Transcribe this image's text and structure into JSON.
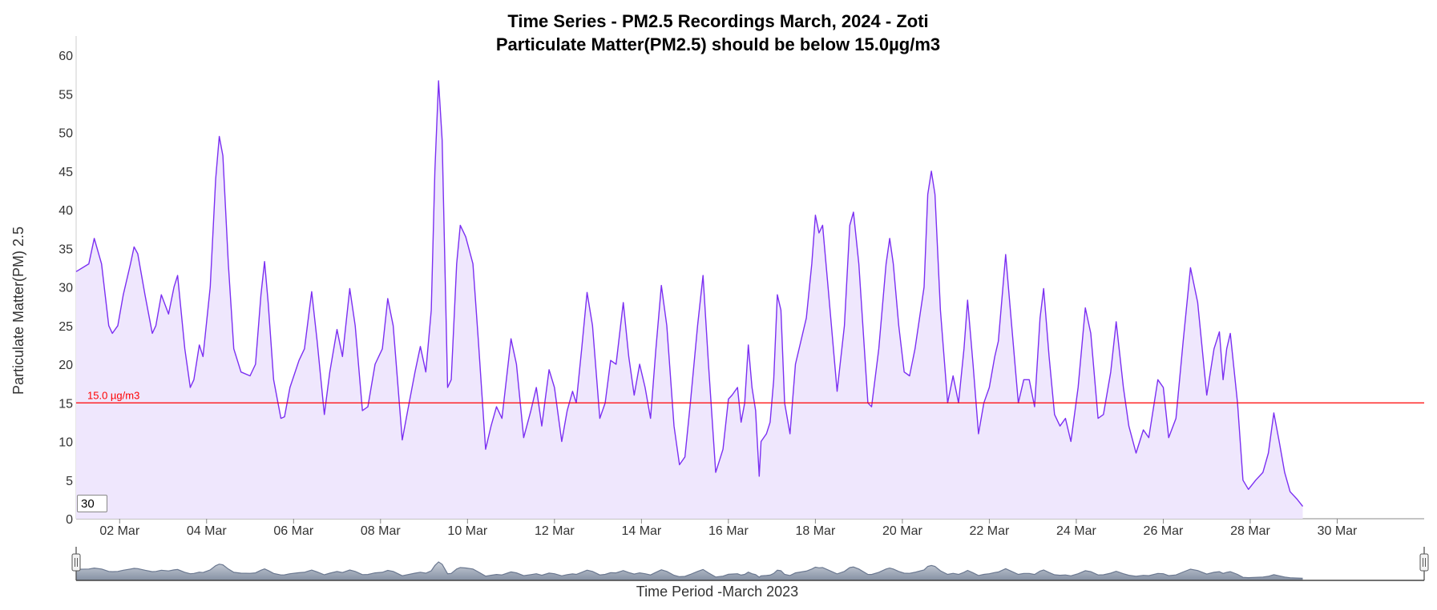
{
  "chart_data": {
    "type": "area",
    "title": "Time Series - PM2.5 Recordings March, 2024 - Zoti",
    "subtitle": "Particulate Matter(PM2.5) should be below 15.0µg/m3",
    "xlabel": "Time Period -March 2023",
    "ylabel": "Particulate Matter(PM) 2.5",
    "ylim": [
      0,
      62.5
    ],
    "xlim": [
      "2023-03-01 00:00",
      "2023-04-01 00:00"
    ],
    "y_ticks": [
      0,
      5,
      10,
      15,
      20,
      25,
      30,
      35,
      40,
      45,
      50,
      55,
      60
    ],
    "x_ticks": [
      {
        "date": "2023-03-02",
        "label": "02 Mar"
      },
      {
        "date": "2023-03-04",
        "label": "04 Mar"
      },
      {
        "date": "2023-03-06",
        "label": "06 Mar"
      },
      {
        "date": "2023-03-08",
        "label": "08 Mar"
      },
      {
        "date": "2023-03-10",
        "label": "10 Mar"
      },
      {
        "date": "2023-03-12",
        "label": "12 Mar"
      },
      {
        "date": "2023-03-14",
        "label": "14 Mar"
      },
      {
        "date": "2023-03-16",
        "label": "16 Mar"
      },
      {
        "date": "2023-03-18",
        "label": "18 Mar"
      },
      {
        "date": "2023-03-20",
        "label": "20 Mar"
      },
      {
        "date": "2023-03-22",
        "label": "22 Mar"
      },
      {
        "date": "2023-03-24",
        "label": "24 Mar"
      },
      {
        "date": "2023-03-26",
        "label": "26 Mar"
      },
      {
        "date": "2023-03-28",
        "label": "28 Mar"
      },
      {
        "date": "2023-03-30",
        "label": "30 Mar"
      }
    ],
    "threshold": {
      "value": 15.0,
      "label": "15.0 µg/m3",
      "color": "#ff0000"
    },
    "series": [
      {
        "color": "#7b2ff2",
        "fill": "#efe7fd",
        "points": [
          [
            "2023-03-01 00:00",
            32
          ],
          [
            "2023-03-01 07:00",
            33
          ],
          [
            "2023-03-01 10:00",
            36.3
          ],
          [
            "2023-03-01 14:00",
            33
          ],
          [
            "2023-03-01 18:00",
            25
          ],
          [
            "2023-03-01 20:00",
            24
          ],
          [
            "2023-03-01 23:00",
            25
          ],
          [
            "2023-03-02 02:00",
            29
          ],
          [
            "2023-03-02 06:00",
            33
          ],
          [
            "2023-03-02 08:00",
            35.2
          ],
          [
            "2023-03-02 10:00",
            34.3
          ],
          [
            "2023-03-02 14:00",
            29
          ],
          [
            "2023-03-02 18:00",
            24
          ],
          [
            "2023-03-02 20:00",
            25
          ],
          [
            "2023-03-02 23:00",
            29
          ],
          [
            "2023-03-03 03:00",
            26.5
          ],
          [
            "2023-03-03 06:00",
            30
          ],
          [
            "2023-03-03 08:00",
            31.5
          ],
          [
            "2023-03-03 12:00",
            22
          ],
          [
            "2023-03-03 15:00",
            17
          ],
          [
            "2023-03-03 17:00",
            18
          ],
          [
            "2023-03-03 20:00",
            22.5
          ],
          [
            "2023-03-03 22:00",
            21
          ],
          [
            "2023-03-04 02:00",
            30
          ],
          [
            "2023-03-04 05:00",
            44
          ],
          [
            "2023-03-04 07:00",
            49.5
          ],
          [
            "2023-03-04 09:00",
            47
          ],
          [
            "2023-03-04 12:00",
            33
          ],
          [
            "2023-03-04 15:00",
            22
          ],
          [
            "2023-03-04 19:00",
            19
          ],
          [
            "2023-03-05 00:00",
            18.5
          ],
          [
            "2023-03-05 03:00",
            20
          ],
          [
            "2023-03-05 06:00",
            29
          ],
          [
            "2023-03-05 08:00",
            33.3
          ],
          [
            "2023-03-05 10:00",
            28
          ],
          [
            "2023-03-05 13:00",
            18
          ],
          [
            "2023-03-05 17:00",
            13
          ],
          [
            "2023-03-05 19:00",
            13.2
          ],
          [
            "2023-03-05 22:00",
            17
          ],
          [
            "2023-03-06 03:00",
            20.5
          ],
          [
            "2023-03-06 06:00",
            22
          ],
          [
            "2023-03-06 10:00",
            29.4
          ],
          [
            "2023-03-06 13:00",
            23
          ],
          [
            "2023-03-06 17:00",
            13.5
          ],
          [
            "2023-03-06 20:00",
            19
          ],
          [
            "2023-03-07 00:00",
            24.5
          ],
          [
            "2023-03-07 03:00",
            21
          ],
          [
            "2023-03-07 07:00",
            29.8
          ],
          [
            "2023-03-07 10:00",
            25
          ],
          [
            "2023-03-07 14:00",
            14
          ],
          [
            "2023-03-07 17:00",
            14.5
          ],
          [
            "2023-03-07 21:00",
            20
          ],
          [
            "2023-03-08 01:00",
            22
          ],
          [
            "2023-03-08 04:00",
            28.5
          ],
          [
            "2023-03-08 07:00",
            25
          ],
          [
            "2023-03-08 12:00",
            10.2
          ],
          [
            "2023-03-08 15:00",
            14
          ],
          [
            "2023-03-08 19:00",
            19
          ],
          [
            "2023-03-08 22:00",
            22.3
          ],
          [
            "2023-03-09 01:00",
            19
          ],
          [
            "2023-03-09 04:00",
            27
          ],
          [
            "2023-03-09 06:00",
            45
          ],
          [
            "2023-03-09 08:00",
            56.7
          ],
          [
            "2023-03-09 10:00",
            49
          ],
          [
            "2023-03-09 13:00",
            17
          ],
          [
            "2023-03-09 15:00",
            18
          ],
          [
            "2023-03-09 18:00",
            33
          ],
          [
            "2023-03-09 20:00",
            38
          ],
          [
            "2023-03-09 23:00",
            36.5
          ],
          [
            "2023-03-10 03:00",
            33
          ],
          [
            "2023-03-10 06:00",
            23
          ],
          [
            "2023-03-10 10:00",
            9
          ],
          [
            "2023-03-10 13:00",
            12
          ],
          [
            "2023-03-10 16:00",
            14.5
          ],
          [
            "2023-03-10 19:00",
            13
          ],
          [
            "2023-03-11 00:00",
            23.3
          ],
          [
            "2023-03-11 03:00",
            20
          ],
          [
            "2023-03-11 07:00",
            10.5
          ],
          [
            "2023-03-11 11:00",
            14
          ],
          [
            "2023-03-11 14:00",
            17
          ],
          [
            "2023-03-11 17:00",
            12
          ],
          [
            "2023-03-11 21:00",
            19.3
          ],
          [
            "2023-03-12 00:00",
            17
          ],
          [
            "2023-03-12 04:00",
            10
          ],
          [
            "2023-03-12 07:00",
            14
          ],
          [
            "2023-03-12 10:00",
            16.5
          ],
          [
            "2023-03-12 12:00",
            15
          ],
          [
            "2023-03-12 15:00",
            22
          ],
          [
            "2023-03-12 18:00",
            29.3
          ],
          [
            "2023-03-12 21:00",
            25
          ],
          [
            "2023-03-13 01:00",
            13
          ],
          [
            "2023-03-13 04:00",
            15
          ],
          [
            "2023-03-13 07:00",
            20.5
          ],
          [
            "2023-03-13 10:00",
            20
          ],
          [
            "2023-03-13 14:00",
            28
          ],
          [
            "2023-03-13 17:00",
            21
          ],
          [
            "2023-03-13 20:00",
            16
          ],
          [
            "2023-03-13 23:00",
            20
          ],
          [
            "2023-03-14 02:00",
            17
          ],
          [
            "2023-03-14 05:00",
            13
          ],
          [
            "2023-03-14 08:00",
            22
          ],
          [
            "2023-03-14 11:00",
            30.2
          ],
          [
            "2023-03-14 14:00",
            25
          ],
          [
            "2023-03-14 18:00",
            12
          ],
          [
            "2023-03-14 21:00",
            7
          ],
          [
            "2023-03-15 00:00",
            8
          ],
          [
            "2023-03-15 03:00",
            15
          ],
          [
            "2023-03-15 07:00",
            25
          ],
          [
            "2023-03-15 10:00",
            31.5
          ],
          [
            "2023-03-15 13:00",
            20
          ],
          [
            "2023-03-15 17:00",
            6
          ],
          [
            "2023-03-15 19:00",
            7.5
          ],
          [
            "2023-03-15 21:00",
            9
          ],
          [
            "2023-03-16 00:00",
            15.5
          ],
          [
            "2023-03-16 02:00",
            16
          ],
          [
            "2023-03-16 05:00",
            17
          ],
          [
            "2023-03-16 07:00",
            12.5
          ],
          [
            "2023-03-16 09:00",
            15
          ],
          [
            "2023-03-16 11:00",
            22.5
          ],
          [
            "2023-03-16 13:00",
            17
          ],
          [
            "2023-03-16 15:00",
            14
          ],
          [
            "2023-03-16 17:00",
            5.5
          ],
          [
            "2023-03-16 18:00",
            10
          ],
          [
            "2023-03-16 21:00",
            11
          ],
          [
            "2023-03-16 23:00",
            12.5
          ],
          [
            "2023-03-17 01:00",
            18
          ],
          [
            "2023-03-17 03:00",
            29
          ],
          [
            "2023-03-17 05:00",
            27
          ],
          [
            "2023-03-17 07:00",
            15
          ],
          [
            "2023-03-17 10:00",
            11
          ],
          [
            "2023-03-17 13:00",
            20
          ],
          [
            "2023-03-17 16:00",
            23
          ],
          [
            "2023-03-17 19:00",
            26
          ],
          [
            "2023-03-17 22:00",
            33
          ],
          [
            "2023-03-18 00:00",
            39.3
          ],
          [
            "2023-03-18 02:00",
            37
          ],
          [
            "2023-03-18 04:00",
            38
          ],
          [
            "2023-03-18 07:00",
            30
          ],
          [
            "2023-03-18 12:00",
            16.5
          ],
          [
            "2023-03-18 16:00",
            25
          ],
          [
            "2023-03-18 19:00",
            38
          ],
          [
            "2023-03-18 21:00",
            39.7
          ],
          [
            "2023-03-19 00:00",
            33
          ],
          [
            "2023-03-19 05:00",
            15
          ],
          [
            "2023-03-19 07:00",
            14.5
          ],
          [
            "2023-03-19 11:00",
            22
          ],
          [
            "2023-03-19 15:00",
            33
          ],
          [
            "2023-03-19 17:00",
            36.3
          ],
          [
            "2023-03-19 19:00",
            33
          ],
          [
            "2023-03-19 22:00",
            25
          ],
          [
            "2023-03-20 01:00",
            19
          ],
          [
            "2023-03-20 04:00",
            18.5
          ],
          [
            "2023-03-20 07:00",
            22
          ],
          [
            "2023-03-20 12:00",
            30
          ],
          [
            "2023-03-20 14:00",
            42
          ],
          [
            "2023-03-20 16:00",
            45
          ],
          [
            "2023-03-20 18:00",
            42
          ],
          [
            "2023-03-20 21:00",
            27
          ],
          [
            "2023-03-21 01:00",
            15
          ],
          [
            "2023-03-21 04:00",
            18.5
          ],
          [
            "2023-03-21 07:00",
            15
          ],
          [
            "2023-03-21 10:00",
            22
          ],
          [
            "2023-03-21 12:00",
            28.3
          ],
          [
            "2023-03-21 15:00",
            20
          ],
          [
            "2023-03-21 18:00",
            11
          ],
          [
            "2023-03-21 21:00",
            15
          ],
          [
            "2023-03-22 00:00",
            17
          ],
          [
            "2023-03-22 03:00",
            21
          ],
          [
            "2023-03-22 05:00",
            23
          ],
          [
            "2023-03-22 09:00",
            34.2
          ],
          [
            "2023-03-22 12:00",
            26
          ],
          [
            "2023-03-22 16:00",
            15
          ],
          [
            "2023-03-22 19:00",
            18
          ],
          [
            "2023-03-22 22:00",
            18
          ],
          [
            "2023-03-23 01:00",
            14.5
          ],
          [
            "2023-03-23 04:00",
            26
          ],
          [
            "2023-03-23 06:00",
            29.8
          ],
          [
            "2023-03-23 09:00",
            21
          ],
          [
            "2023-03-23 12:00",
            13.5
          ],
          [
            "2023-03-23 15:00",
            12
          ],
          [
            "2023-03-23 18:00",
            13
          ],
          [
            "2023-03-23 21:00",
            10
          ],
          [
            "2023-03-24 01:00",
            17
          ],
          [
            "2023-03-24 05:00",
            27.3
          ],
          [
            "2023-03-24 08:00",
            24
          ],
          [
            "2023-03-24 12:00",
            13
          ],
          [
            "2023-03-24 15:00",
            13.5
          ],
          [
            "2023-03-24 19:00",
            19
          ],
          [
            "2023-03-24 22:00",
            25.5
          ],
          [
            "2023-03-25 02:00",
            17
          ],
          [
            "2023-03-25 05:00",
            12
          ],
          [
            "2023-03-25 09:00",
            8.5
          ],
          [
            "2023-03-25 13:00",
            11.5
          ],
          [
            "2023-03-25 16:00",
            10.5
          ],
          [
            "2023-03-25 21:00",
            18
          ],
          [
            "2023-03-26 00:00",
            17
          ],
          [
            "2023-03-26 03:00",
            10.5
          ],
          [
            "2023-03-26 07:00",
            13
          ],
          [
            "2023-03-26 11:00",
            23
          ],
          [
            "2023-03-26 15:00",
            32.5
          ],
          [
            "2023-03-26 19:00",
            28
          ],
          [
            "2023-03-27 00:00",
            16
          ],
          [
            "2023-03-27 04:00",
            22
          ],
          [
            "2023-03-27 07:00",
            24.2
          ],
          [
            "2023-03-27 09:00",
            18
          ],
          [
            "2023-03-27 11:00",
            22
          ],
          [
            "2023-03-27 13:00",
            24
          ],
          [
            "2023-03-27 17:00",
            15
          ],
          [
            "2023-03-27 20:00",
            5
          ],
          [
            "2023-03-27 23:00",
            3.8
          ],
          [
            "2023-03-28 03:00",
            5
          ],
          [
            "2023-03-28 07:00",
            6
          ],
          [
            "2023-03-28 10:00",
            8.5
          ],
          [
            "2023-03-28 13:00",
            13.7
          ],
          [
            "2023-03-28 16:00",
            10
          ],
          [
            "2023-03-28 19:00",
            6
          ],
          [
            "2023-03-28 22:00",
            3.5
          ],
          [
            "2023-03-29 02:00",
            2.5
          ],
          [
            "2023-03-29 05:00",
            1.6
          ]
        ]
      }
    ]
  },
  "navigator": {
    "rolling_period": "30"
  }
}
